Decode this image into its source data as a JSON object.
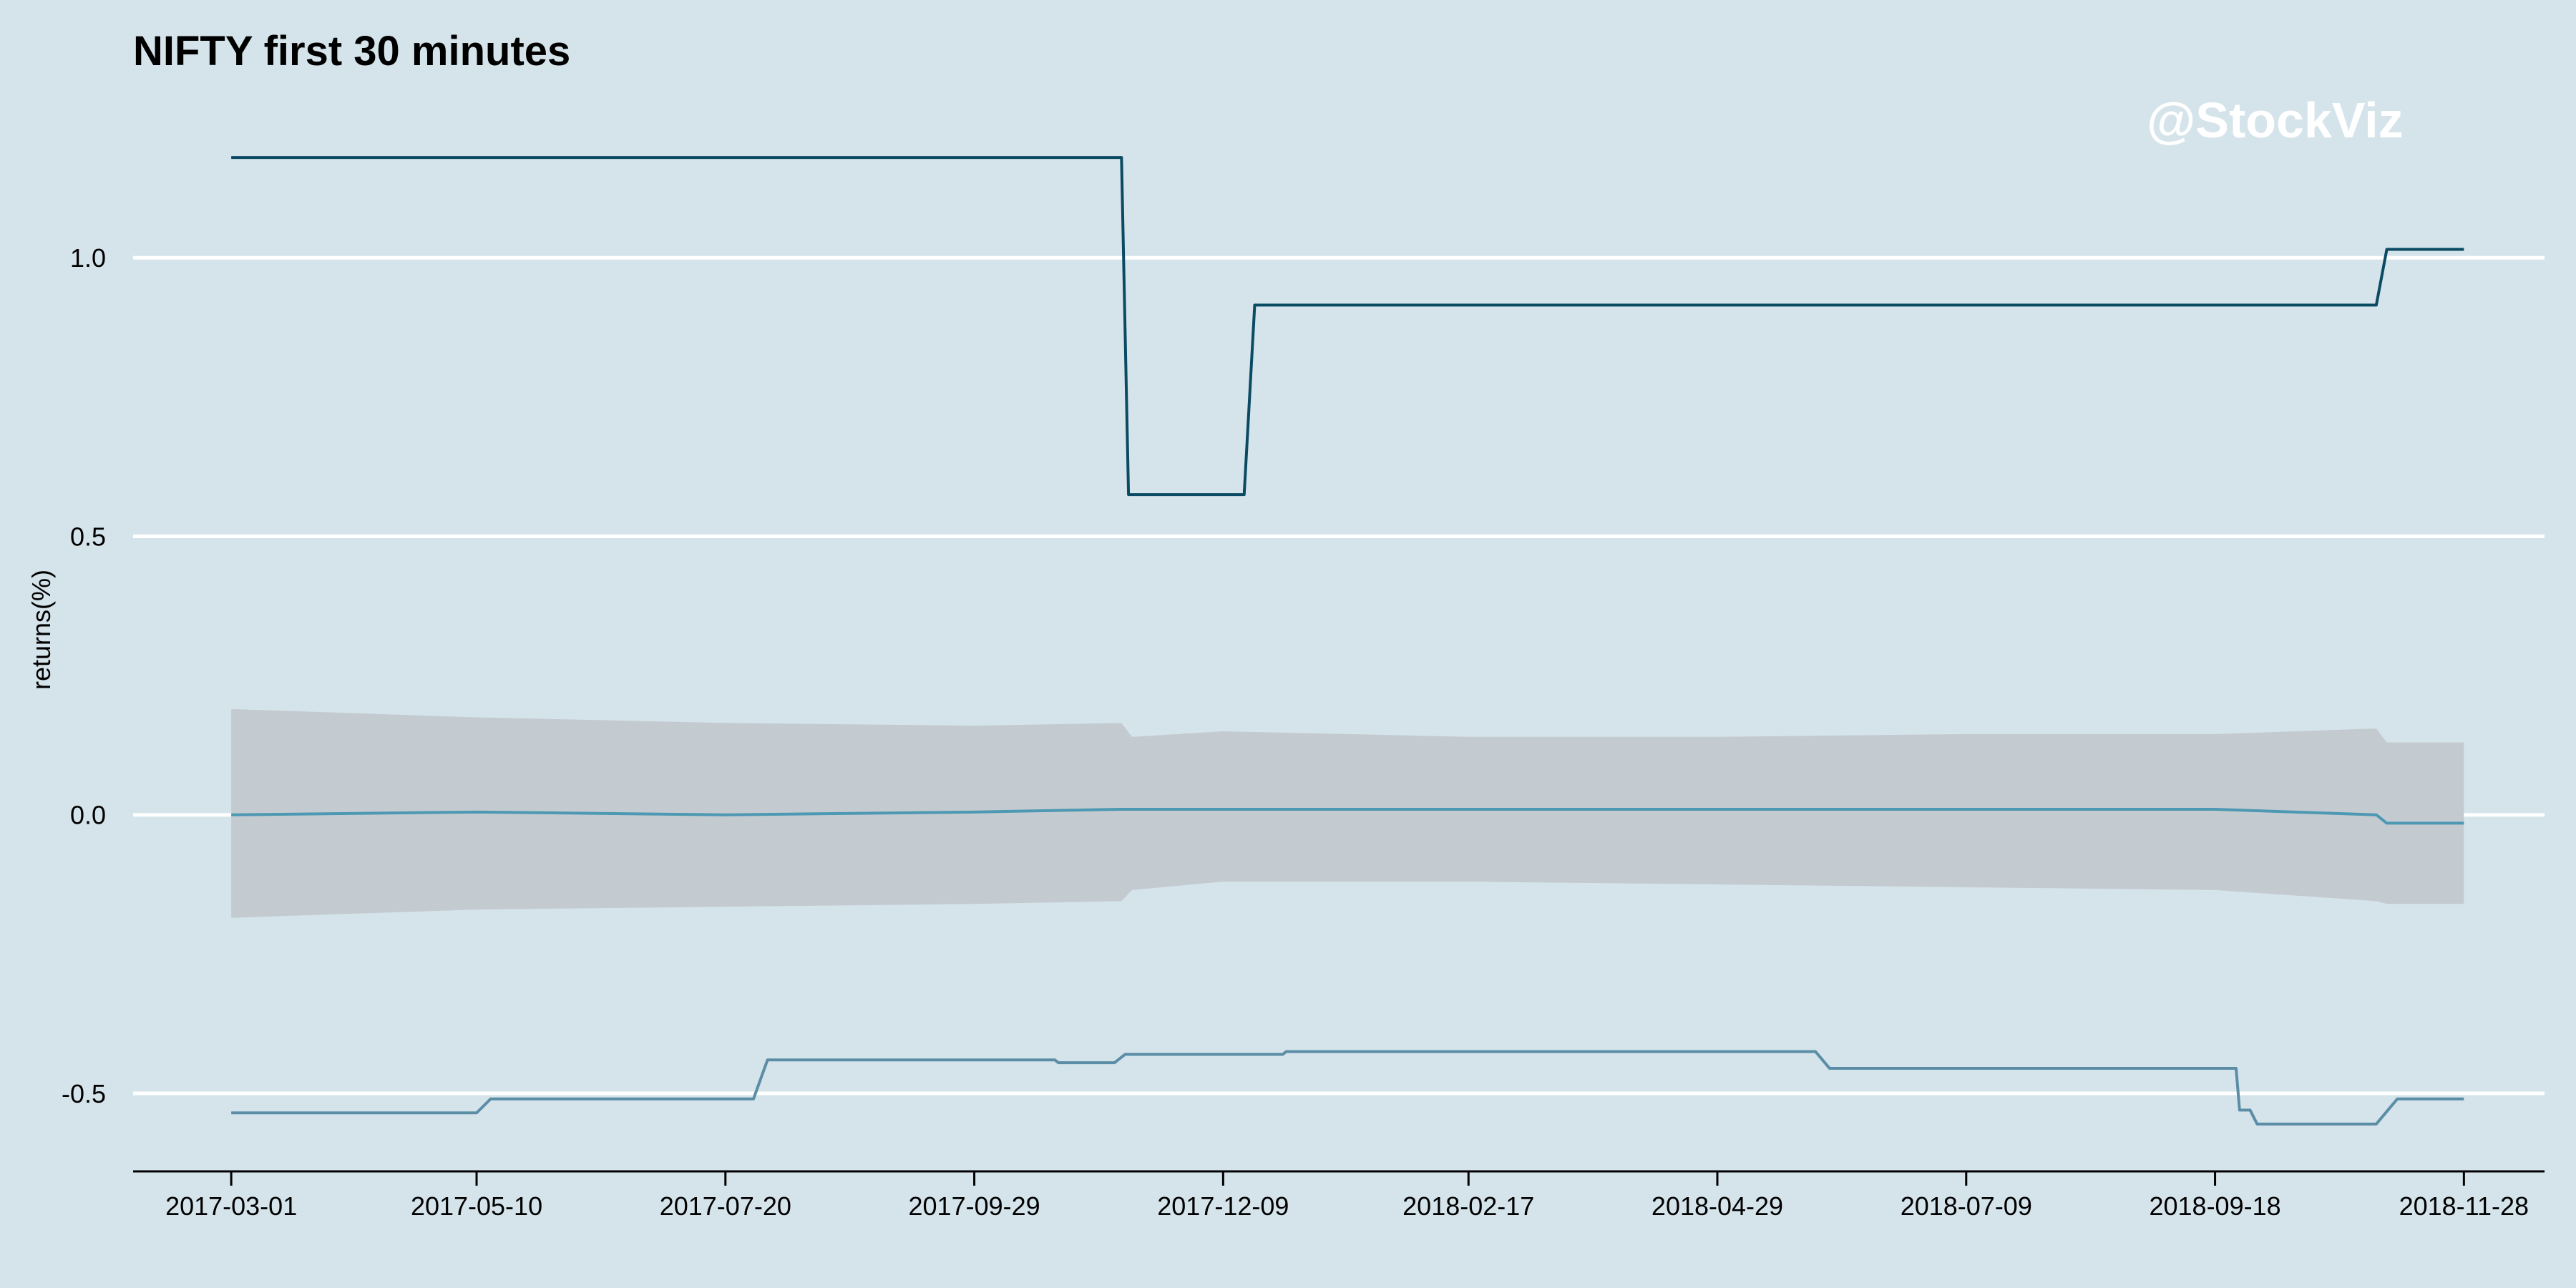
{
  "chart_data": {
    "type": "line",
    "title": "NIFTY first 30 minutes",
    "watermark": "@StockViz",
    "xlabel": "",
    "ylabel": "returns(%)",
    "ylim": [
      -0.64,
      1.27
    ],
    "y_ticks": [
      -0.5,
      0.0,
      0.5,
      1.0
    ],
    "y_tick_labels": [
      "-0.5",
      "0.0",
      "0.5",
      "1.0"
    ],
    "x_range": [
      "2017-02-01",
      "2018-12-21"
    ],
    "x_ticks": [
      "2017-03-01",
      "2017-05-10",
      "2017-07-20",
      "2017-09-29",
      "2017-12-09",
      "2018-02-17",
      "2018-04-29",
      "2018-07-09",
      "2018-09-18",
      "2018-11-28"
    ],
    "grid": "horizontal major lines",
    "colors": {
      "background": "#d5e4eb",
      "gridline": "#ffffff",
      "max_line": "#0b4a63",
      "mean_line": "#4d98b3",
      "min_line": "#5b8ea6",
      "band": "#c4cbd0",
      "axis": "#000000"
    },
    "band": {
      "x": [
        "2017-03-01",
        "2017-05-10",
        "2017-07-20",
        "2017-09-29",
        "2017-11-10",
        "2017-11-13",
        "2017-12-09",
        "2018-02-17",
        "2018-04-29",
        "2018-07-09",
        "2018-09-18",
        "2018-11-03",
        "2018-11-06",
        "2018-11-28"
      ],
      "upper": [
        0.19,
        0.175,
        0.165,
        0.16,
        0.165,
        0.14,
        0.15,
        0.14,
        0.14,
        0.145,
        0.145,
        0.155,
        0.13,
        0.13
      ],
      "lower": [
        -0.185,
        -0.17,
        -0.165,
        -0.16,
        -0.155,
        -0.135,
        -0.12,
        -0.12,
        -0.125,
        -0.13,
        -0.135,
        -0.155,
        -0.16,
        -0.16
      ]
    },
    "series": [
      {
        "x": [
          "2017-03-01",
          "2017-11-10",
          "2017-11-12",
          "2017-12-15",
          "2017-12-18",
          "2018-11-03",
          "2018-11-06",
          "2018-11-28"
        ],
        "values": [
          1.18,
          1.18,
          0.575,
          0.575,
          0.915,
          0.915,
          1.015,
          1.015
        ]
      },
      {
        "x": [
          "2017-03-01",
          "2017-05-10",
          "2017-07-20",
          "2017-09-29",
          "2017-11-10",
          "2017-12-09",
          "2018-02-17",
          "2018-04-29",
          "2018-07-09",
          "2018-09-18",
          "2018-11-03",
          "2018-11-06",
          "2018-11-28"
        ],
        "values": [
          0.0,
          0.005,
          0.0,
          0.005,
          0.01,
          0.01,
          0.01,
          0.01,
          0.01,
          0.01,
          0.0,
          -0.015,
          -0.015
        ]
      },
      {
        "x": [
          "2017-03-01",
          "2017-05-10",
          "2017-05-14",
          "2017-07-28",
          "2017-08-01",
          "2017-10-22",
          "2017-10-23",
          "2017-11-08",
          "2017-11-11",
          "2017-12-26",
          "2017-12-27",
          "2018-05-27",
          "2018-05-31",
          "2018-09-24",
          "2018-09-25",
          "2018-09-28",
          "2018-09-30",
          "2018-11-03",
          "2018-11-09",
          "2018-11-28"
        ],
        "values": [
          -0.535,
          -0.535,
          -0.51,
          -0.51,
          -0.44,
          -0.44,
          -0.445,
          -0.445,
          -0.43,
          -0.43,
          -0.425,
          -0.425,
          -0.455,
          -0.455,
          -0.53,
          -0.53,
          -0.555,
          -0.555,
          -0.51,
          -0.51
        ]
      }
    ]
  }
}
